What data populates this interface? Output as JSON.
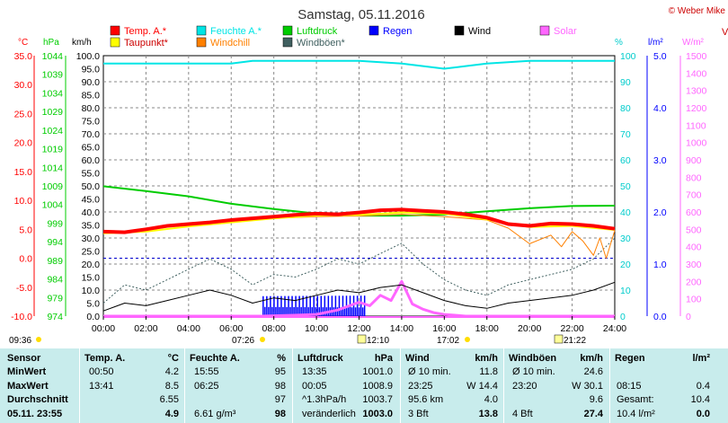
{
  "header": {
    "title": "Samstag, 05.11.2016",
    "copyright": "© Weber Mike",
    "edge_marker": "V"
  },
  "legend": [
    {
      "label": "Temp. A.*",
      "color": "#ff0000"
    },
    {
      "label": "Feuchte A.*",
      "color": "#00e5e5"
    },
    {
      "label": "Luftdruck",
      "color": "#00cc00"
    },
    {
      "label": "Regen",
      "color": "#0000ff"
    },
    {
      "label": "Wind",
      "color": "#000000"
    },
    {
      "label": "Solar",
      "color": "#ff66ff"
    },
    {
      "label": "Taupunkt*",
      "color": "#ffff00"
    },
    {
      "label": "Windchill",
      "color": "#ff8000"
    },
    {
      "label": "Windböen*",
      "color": "#406060"
    }
  ],
  "axes": {
    "temp": {
      "unit": "°C",
      "ticks": [
        "35.0",
        "30.0",
        "25.0",
        "20.0",
        "15.0",
        "10.0",
        "5.0",
        "0.0",
        "-5.0",
        "-10.0"
      ],
      "color": "#ff0000"
    },
    "pressure": {
      "unit": "hPa",
      "ticks": [
        "1044",
        "1039",
        "1034",
        "1029",
        "1024",
        "1019",
        "1014",
        "1009",
        "1004",
        "999",
        "994",
        "989",
        "984",
        "979",
        "974"
      ],
      "color": "#00cc00"
    },
    "wind": {
      "unit": "km/h",
      "ticks": [
        "100.0",
        "95.0",
        "90.0",
        "85.0",
        "80.0",
        "75.0",
        "70.0",
        "65.0",
        "60.0",
        "55.0",
        "50.0",
        "45.0",
        "40.0",
        "35.0",
        "30.0",
        "25.0",
        "20.0",
        "15.0",
        "10.0",
        "5.0",
        "0.0"
      ],
      "color": "#000000"
    },
    "humidity": {
      "unit": "%",
      "ticks": [
        "100",
        "90",
        "80",
        "70",
        "60",
        "50",
        "40",
        "30",
        "20",
        "10",
        "0"
      ],
      "color": "#00cccc"
    },
    "rain": {
      "unit": "l/m²",
      "ticks": [
        "5.0",
        "4.0",
        "3.0",
        "2.0",
        "1.0",
        "0.0"
      ],
      "color": "#0000ff"
    },
    "solar": {
      "unit": "W/m²",
      "ticks": [
        "1500",
        "1400",
        "1300",
        "1200",
        "1100",
        "1000",
        "900",
        "800",
        "700",
        "600",
        "500",
        "400",
        "300",
        "200",
        "100",
        "0"
      ],
      "color": "#ff66ff"
    },
    "x_ticks": [
      "00:00",
      "02:00",
      "04:00",
      "06:00",
      "08:00",
      "10:00",
      "12:00",
      "14:00",
      "16:00",
      "18:00",
      "20:00",
      "22:00",
      "24:00"
    ]
  },
  "sun_markers": {
    "sunrise_label": "07:26",
    "sunset_label": "17:02",
    "moonrise_label": "12:10",
    "moonset_label": "21:22",
    "left_time": "09:36"
  },
  "chart_data": {
    "type": "line",
    "title": "Samstag, 05.11.2016",
    "x_unit": "hours",
    "xlim": [
      0,
      24
    ],
    "series": [
      {
        "name": "Temp. A.*",
        "axis": "temp",
        "color": "#ff0000",
        "x": [
          0,
          1,
          2,
          3,
          4,
          5,
          6,
          7,
          8,
          9,
          10,
          11,
          12,
          13,
          14,
          15,
          16,
          17,
          18,
          19,
          20,
          21,
          22,
          23,
          24
        ],
        "y": [
          4.6,
          4.5,
          5.0,
          5.6,
          5.9,
          6.2,
          6.6,
          6.9,
          7.2,
          7.5,
          7.7,
          7.6,
          7.9,
          8.3,
          8.4,
          8.2,
          8.0,
          7.6,
          7.0,
          5.9,
          5.6,
          6.0,
          5.9,
          5.6,
          5.1
        ]
      },
      {
        "name": "Taupunkt*",
        "axis": "temp",
        "color": "#ffff00",
        "x": [
          0,
          2,
          4,
          6,
          8,
          10,
          12,
          14,
          16,
          18,
          20,
          22,
          24
        ],
        "y": [
          4.3,
          4.6,
          5.5,
          6.2,
          6.9,
          7.4,
          7.5,
          7.9,
          7.7,
          6.7,
          5.4,
          5.6,
          4.9
        ]
      },
      {
        "name": "Luftdruck",
        "axis": "pressure",
        "color": "#00cc00",
        "x": [
          0,
          2,
          4,
          6,
          8,
          10,
          12,
          14,
          16,
          18,
          20,
          22,
          24
        ],
        "y": [
          1008.9,
          1007.6,
          1006.2,
          1004.2,
          1002.8,
          1001.6,
          1001.0,
          1001.0,
          1001.3,
          1002.2,
          1003.0,
          1003.6,
          1003.7
        ]
      },
      {
        "name": "Feuchte A.*",
        "axis": "humidity",
        "color": "#00e5e5",
        "x": [
          0,
          2,
          4,
          6,
          7,
          8,
          10,
          12,
          14,
          15,
          16,
          17,
          18,
          20,
          22,
          24
        ],
        "y": [
          97,
          97,
          97,
          97,
          98,
          98,
          98,
          98,
          97,
          96,
          95,
          96,
          97,
          98,
          98,
          98
        ]
      },
      {
        "name": "Wind",
        "axis": "wind",
        "color": "#000000",
        "x": [
          0,
          1,
          2,
          3,
          4,
          5,
          6,
          7,
          8,
          9,
          10,
          11,
          12,
          13,
          14,
          15,
          16,
          17,
          18,
          19,
          20,
          21,
          22,
          23,
          24
        ],
        "y": [
          2,
          5,
          4,
          6,
          8,
          10,
          8,
          5,
          7,
          6,
          8,
          10,
          9,
          11,
          12,
          9,
          6,
          4,
          3,
          5,
          6,
          7,
          8,
          10,
          13
        ]
      },
      {
        "name": "Windböen*",
        "axis": "wind",
        "color": "#406060",
        "x": [
          0,
          1,
          2,
          3,
          4,
          5,
          6,
          7,
          8,
          9,
          10,
          11,
          12,
          13,
          14,
          15,
          16,
          17,
          18,
          19,
          20,
          21,
          22,
          23,
          24
        ],
        "y": [
          5,
          12,
          10,
          14,
          18,
          22,
          18,
          12,
          16,
          15,
          18,
          22,
          20,
          24,
          28,
          20,
          14,
          10,
          8,
          12,
          14,
          16,
          18,
          22,
          30
        ]
      },
      {
        "name": "Solar",
        "axis": "solar",
        "color": "#ff66ff",
        "x": [
          0,
          7.4,
          9,
          10,
          11,
          12,
          12.5,
          13,
          13.5,
          14,
          14.5,
          15,
          15.5,
          16,
          16.5,
          17,
          24
        ],
        "y": [
          0,
          0,
          5,
          10,
          35,
          80,
          60,
          120,
          90,
          200,
          70,
          40,
          20,
          10,
          5,
          0,
          0
        ]
      },
      {
        "name": "Windchill",
        "axis": "temp",
        "color": "#ff8000",
        "x": [
          0,
          2,
          4,
          6,
          8,
          10,
          12,
          14,
          16,
          18,
          19,
          20,
          21,
          21.5,
          22,
          22.5,
          23,
          23.3,
          23.6,
          24
        ],
        "y": [
          4.3,
          4.6,
          5.5,
          6.2,
          6.9,
          7.2,
          7.3,
          7.6,
          7.2,
          6.6,
          5.2,
          2.5,
          4.0,
          2.0,
          4.6,
          3.0,
          0.5,
          3.5,
          0.0,
          4.8
        ]
      }
    ],
    "rain": {
      "name": "Regen",
      "axis": "rain",
      "color": "#0000ff",
      "start_h": 7.5,
      "end_h": 12.3,
      "level_mm": 0.4
    }
  },
  "stats": {
    "headers": {
      "sensor": "Sensor",
      "temp": "Temp. A.",
      "temp_unit": "°C",
      "hum": "Feuchte A.",
      "hum_unit": "%",
      "press": "Luftdruck",
      "press_unit": "hPa",
      "wind": "Wind",
      "wind_unit": "km/h",
      "gust": "Windböen",
      "gust_unit": "km/h",
      "rain": "Regen",
      "rain_unit": "l/m²"
    },
    "rows": [
      {
        "label": "MinWert",
        "t_time": "00:50",
        "t_val": "4.2",
        "h_time": "15:55",
        "h_val": "95",
        "p_time": "13:35",
        "p_val": "1001.0",
        "w_label": "Ø 10 min.",
        "w_val": "11.8",
        "g_label": "Ø 10 min.",
        "g_val": "24.6",
        "r_label": "",
        "r_val": ""
      },
      {
        "label": "MaxWert",
        "t_time": "13:41",
        "t_val": "8.5",
        "h_time": "06:25",
        "h_val": "98",
        "p_time": "00:05",
        "p_val": "1008.9",
        "w_label": "23:25",
        "w_mid": "W 14.4",
        "w_val": "",
        "g_label": "23:20",
        "g_mid": "W 30.1",
        "g_val": "",
        "r_label": "08:15",
        "r_val": "0.4"
      },
      {
        "label": "Durchschnitt",
        "t_time": "",
        "t_val": "6.55",
        "h_time": "",
        "h_val": "97",
        "p_time": "^1.3hPa/h",
        "p_val": "1003.7",
        "w_label": "95.6 km",
        "w_val": "4.0",
        "g_label": "",
        "g_val": "9.6",
        "r_label": "Gesamt:",
        "r_val": "10.4"
      },
      {
        "label": "05.11. 23:55",
        "t_time": "",
        "t_val": "4.9",
        "h_time": "6.61 g/m³",
        "h_val": "98",
        "p_time": "veränderlich",
        "p_val": "1003.0",
        "w_label": "3 Bft",
        "w_val": "13.8",
        "g_label": "4 Bft",
        "g_val": "27.4",
        "r_label": "10.4 l/m²",
        "r_val": "0.0"
      }
    ]
  }
}
